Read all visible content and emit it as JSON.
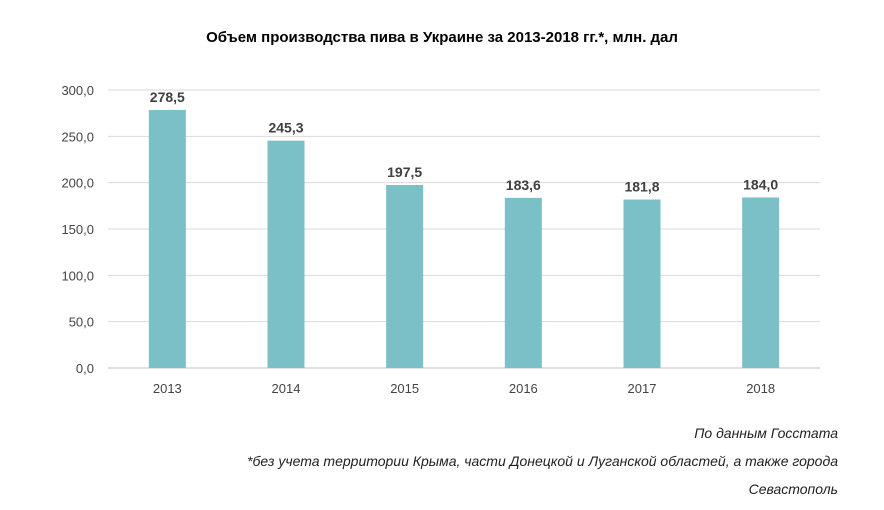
{
  "chart_data": {
    "type": "bar",
    "title": "Объем производства пива в Украине за 2013-2018 гг.*, млн. дал",
    "categories": [
      "2013",
      "2014",
      "2015",
      "2016",
      "2017",
      "2018"
    ],
    "values": [
      278.5,
      245.3,
      197.5,
      183.6,
      181.8,
      184.0
    ],
    "data_labels": [
      "278,5",
      "245,3",
      "197,5",
      "183,6",
      "181,8",
      "184,0"
    ],
    "y_ticks": [
      0,
      50,
      100,
      150,
      200,
      250,
      300
    ],
    "y_tick_labels": [
      "0,0",
      "50,0",
      "100,0",
      "150,0",
      "200,0",
      "250,0",
      "300,0"
    ],
    "ylim": [
      0,
      300
    ],
    "grid": true,
    "bar_color": "#7bbfc7",
    "legend": "none"
  },
  "notes": {
    "source": "По данным Госстата",
    "footnote_line1": "*без учета территории Крыма, части Донецкой и Луганской областей, а также города",
    "footnote_line2": "Севастополь"
  }
}
